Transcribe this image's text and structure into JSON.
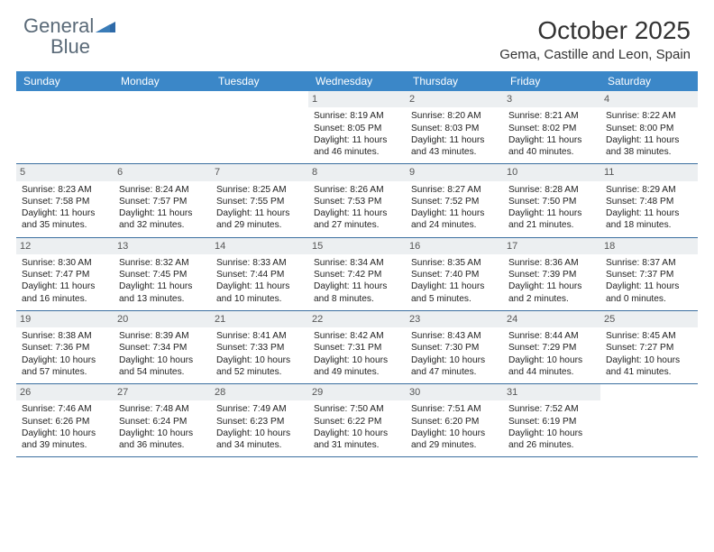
{
  "brand": {
    "word1": "General",
    "word2": "Blue"
  },
  "title": "October 2025",
  "location": "Gema, Castille and Leon, Spain",
  "colors": {
    "header_bg": "#3b87c8",
    "header_text": "#ffffff",
    "daynum_bg": "#eceff1",
    "rule": "#3b6fa0",
    "logo_gray": "#5a6a78",
    "logo_blue": "#3a7cb8"
  },
  "day_headers": [
    "Sunday",
    "Monday",
    "Tuesday",
    "Wednesday",
    "Thursday",
    "Friday",
    "Saturday"
  ],
  "weeks": [
    [
      {
        "n": "",
        "sr": "",
        "ss": "",
        "d1": "",
        "d2": ""
      },
      {
        "n": "",
        "sr": "",
        "ss": "",
        "d1": "",
        "d2": ""
      },
      {
        "n": "",
        "sr": "",
        "ss": "",
        "d1": "",
        "d2": ""
      },
      {
        "n": "1",
        "sr": "Sunrise: 8:19 AM",
        "ss": "Sunset: 8:05 PM",
        "d1": "Daylight: 11 hours",
        "d2": "and 46 minutes."
      },
      {
        "n": "2",
        "sr": "Sunrise: 8:20 AM",
        "ss": "Sunset: 8:03 PM",
        "d1": "Daylight: 11 hours",
        "d2": "and 43 minutes."
      },
      {
        "n": "3",
        "sr": "Sunrise: 8:21 AM",
        "ss": "Sunset: 8:02 PM",
        "d1": "Daylight: 11 hours",
        "d2": "and 40 minutes."
      },
      {
        "n": "4",
        "sr": "Sunrise: 8:22 AM",
        "ss": "Sunset: 8:00 PM",
        "d1": "Daylight: 11 hours",
        "d2": "and 38 minutes."
      }
    ],
    [
      {
        "n": "5",
        "sr": "Sunrise: 8:23 AM",
        "ss": "Sunset: 7:58 PM",
        "d1": "Daylight: 11 hours",
        "d2": "and 35 minutes."
      },
      {
        "n": "6",
        "sr": "Sunrise: 8:24 AM",
        "ss": "Sunset: 7:57 PM",
        "d1": "Daylight: 11 hours",
        "d2": "and 32 minutes."
      },
      {
        "n": "7",
        "sr": "Sunrise: 8:25 AM",
        "ss": "Sunset: 7:55 PM",
        "d1": "Daylight: 11 hours",
        "d2": "and 29 minutes."
      },
      {
        "n": "8",
        "sr": "Sunrise: 8:26 AM",
        "ss": "Sunset: 7:53 PM",
        "d1": "Daylight: 11 hours",
        "d2": "and 27 minutes."
      },
      {
        "n": "9",
        "sr": "Sunrise: 8:27 AM",
        "ss": "Sunset: 7:52 PM",
        "d1": "Daylight: 11 hours",
        "d2": "and 24 minutes."
      },
      {
        "n": "10",
        "sr": "Sunrise: 8:28 AM",
        "ss": "Sunset: 7:50 PM",
        "d1": "Daylight: 11 hours",
        "d2": "and 21 minutes."
      },
      {
        "n": "11",
        "sr": "Sunrise: 8:29 AM",
        "ss": "Sunset: 7:48 PM",
        "d1": "Daylight: 11 hours",
        "d2": "and 18 minutes."
      }
    ],
    [
      {
        "n": "12",
        "sr": "Sunrise: 8:30 AM",
        "ss": "Sunset: 7:47 PM",
        "d1": "Daylight: 11 hours",
        "d2": "and 16 minutes."
      },
      {
        "n": "13",
        "sr": "Sunrise: 8:32 AM",
        "ss": "Sunset: 7:45 PM",
        "d1": "Daylight: 11 hours",
        "d2": "and 13 minutes."
      },
      {
        "n": "14",
        "sr": "Sunrise: 8:33 AM",
        "ss": "Sunset: 7:44 PM",
        "d1": "Daylight: 11 hours",
        "d2": "and 10 minutes."
      },
      {
        "n": "15",
        "sr": "Sunrise: 8:34 AM",
        "ss": "Sunset: 7:42 PM",
        "d1": "Daylight: 11 hours",
        "d2": "and 8 minutes."
      },
      {
        "n": "16",
        "sr": "Sunrise: 8:35 AM",
        "ss": "Sunset: 7:40 PM",
        "d1": "Daylight: 11 hours",
        "d2": "and 5 minutes."
      },
      {
        "n": "17",
        "sr": "Sunrise: 8:36 AM",
        "ss": "Sunset: 7:39 PM",
        "d1": "Daylight: 11 hours",
        "d2": "and 2 minutes."
      },
      {
        "n": "18",
        "sr": "Sunrise: 8:37 AM",
        "ss": "Sunset: 7:37 PM",
        "d1": "Daylight: 11 hours",
        "d2": "and 0 minutes."
      }
    ],
    [
      {
        "n": "19",
        "sr": "Sunrise: 8:38 AM",
        "ss": "Sunset: 7:36 PM",
        "d1": "Daylight: 10 hours",
        "d2": "and 57 minutes."
      },
      {
        "n": "20",
        "sr": "Sunrise: 8:39 AM",
        "ss": "Sunset: 7:34 PM",
        "d1": "Daylight: 10 hours",
        "d2": "and 54 minutes."
      },
      {
        "n": "21",
        "sr": "Sunrise: 8:41 AM",
        "ss": "Sunset: 7:33 PM",
        "d1": "Daylight: 10 hours",
        "d2": "and 52 minutes."
      },
      {
        "n": "22",
        "sr": "Sunrise: 8:42 AM",
        "ss": "Sunset: 7:31 PM",
        "d1": "Daylight: 10 hours",
        "d2": "and 49 minutes."
      },
      {
        "n": "23",
        "sr": "Sunrise: 8:43 AM",
        "ss": "Sunset: 7:30 PM",
        "d1": "Daylight: 10 hours",
        "d2": "and 47 minutes."
      },
      {
        "n": "24",
        "sr": "Sunrise: 8:44 AM",
        "ss": "Sunset: 7:29 PM",
        "d1": "Daylight: 10 hours",
        "d2": "and 44 minutes."
      },
      {
        "n": "25",
        "sr": "Sunrise: 8:45 AM",
        "ss": "Sunset: 7:27 PM",
        "d1": "Daylight: 10 hours",
        "d2": "and 41 minutes."
      }
    ],
    [
      {
        "n": "26",
        "sr": "Sunrise: 7:46 AM",
        "ss": "Sunset: 6:26 PM",
        "d1": "Daylight: 10 hours",
        "d2": "and 39 minutes."
      },
      {
        "n": "27",
        "sr": "Sunrise: 7:48 AM",
        "ss": "Sunset: 6:24 PM",
        "d1": "Daylight: 10 hours",
        "d2": "and 36 minutes."
      },
      {
        "n": "28",
        "sr": "Sunrise: 7:49 AM",
        "ss": "Sunset: 6:23 PM",
        "d1": "Daylight: 10 hours",
        "d2": "and 34 minutes."
      },
      {
        "n": "29",
        "sr": "Sunrise: 7:50 AM",
        "ss": "Sunset: 6:22 PM",
        "d1": "Daylight: 10 hours",
        "d2": "and 31 minutes."
      },
      {
        "n": "30",
        "sr": "Sunrise: 7:51 AM",
        "ss": "Sunset: 6:20 PM",
        "d1": "Daylight: 10 hours",
        "d2": "and 29 minutes."
      },
      {
        "n": "31",
        "sr": "Sunrise: 7:52 AM",
        "ss": "Sunset: 6:19 PM",
        "d1": "Daylight: 10 hours",
        "d2": "and 26 minutes."
      },
      {
        "n": "",
        "sr": "",
        "ss": "",
        "d1": "",
        "d2": ""
      }
    ]
  ]
}
